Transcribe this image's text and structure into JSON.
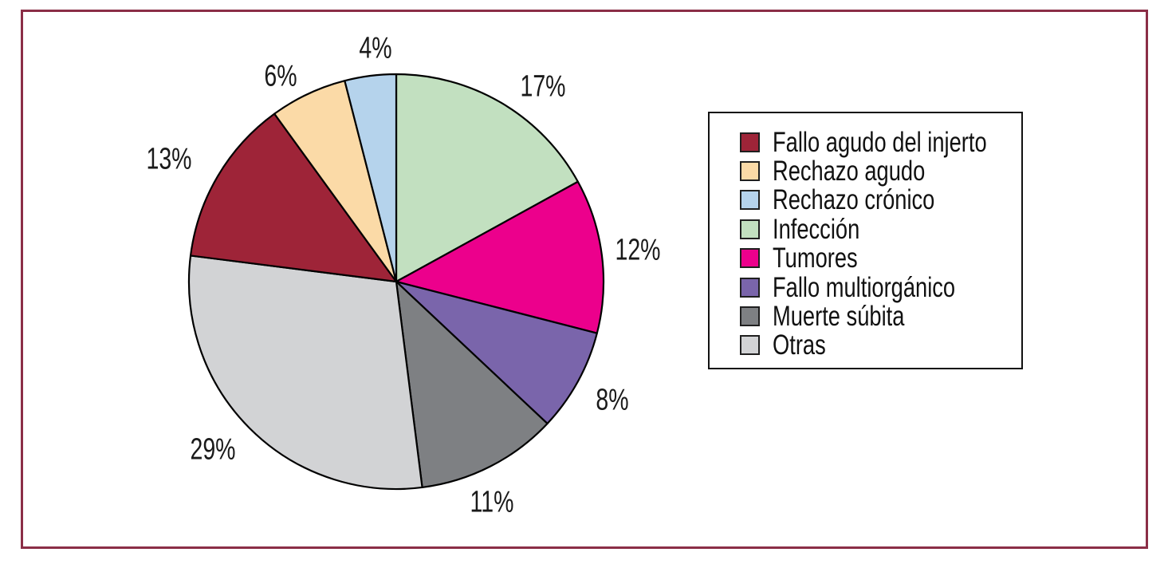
{
  "figure": {
    "background_color": "#ffffff",
    "frame_border_color": "#8b2e47"
  },
  "chart_data": {
    "type": "pie",
    "title": "",
    "unit": "%",
    "series": [
      {
        "label": "Fallo agudo del injerto",
        "value": 13,
        "percent_label": "13%",
        "color": "#9e2438"
      },
      {
        "label": "Rechazo agudo",
        "value": 6,
        "percent_label": "6%",
        "color": "#fbdaa7"
      },
      {
        "label": "Rechazo crónico",
        "value": 4,
        "percent_label": "4%",
        "color": "#b5d3ec"
      },
      {
        "label": "Infección",
        "value": 17,
        "percent_label": "17%",
        "color": "#c2e0c0"
      },
      {
        "label": "Tumores",
        "value": 12,
        "percent_label": "12%",
        "color": "#ec008c"
      },
      {
        "label": "Fallo multiorgánico",
        "value": 8,
        "percent_label": "8%",
        "color": "#7a65ab"
      },
      {
        "label": "Muerte súbita",
        "value": 11,
        "percent_label": "11%",
        "color": "#7e8083"
      },
      {
        "label": "Otras",
        "value": 29,
        "percent_label": "29%",
        "color": "#d2d3d5"
      }
    ],
    "draw_start": "12 o'clock",
    "draw_direction": "clockwise",
    "draw_order_from_top": [
      "Infección",
      "Tumores",
      "Fallo multiorgánico",
      "Muerte súbita",
      "Otras",
      "Fallo agudo del injerto",
      "Rechazo agudo",
      "Rechazo crónico"
    ],
    "slice_outline_color": "#000000",
    "legend": {
      "position": "right",
      "border_color": "#111111",
      "entries": [
        "Fallo agudo del injerto",
        "Rechazo agudo",
        "Rechazo crónico",
        "Infección",
        "Tumores",
        "Fallo multiorgánico",
        "Muerte súbita",
        "Otras"
      ]
    }
  }
}
